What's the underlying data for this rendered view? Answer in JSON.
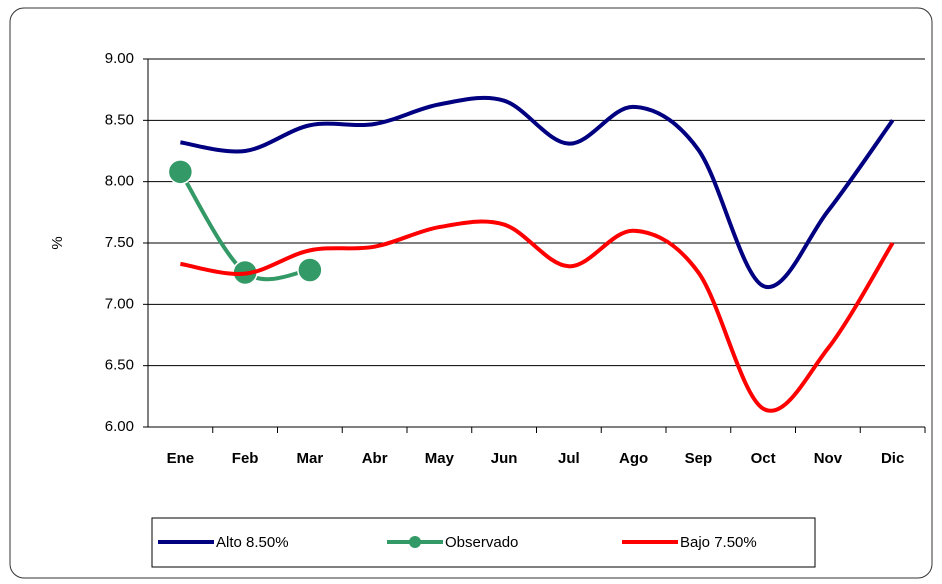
{
  "chart_data": {
    "type": "line",
    "y_label": "%",
    "categories": [
      "Ene",
      "Feb",
      "Mar",
      "Abr",
      "May",
      "Jun",
      "Jul",
      "Ago",
      "Sep",
      "Oct",
      "Nov",
      "Dic"
    ],
    "series": [
      {
        "name": "Alto 8.50%",
        "color": "#000080",
        "marker": false,
        "values": [
          8.32,
          8.25,
          8.46,
          8.47,
          8.63,
          8.66,
          8.31,
          8.61,
          8.26,
          7.15,
          7.76,
          8.5
        ]
      },
      {
        "name": "Observado",
        "color": "#339966",
        "marker": true,
        "values": [
          8.08,
          7.26,
          7.28,
          null,
          null,
          null,
          null,
          null,
          null,
          null,
          null,
          null
        ]
      },
      {
        "name": "Bajo 7.50%",
        "color": "#ff0000",
        "marker": false,
        "values": [
          7.33,
          7.25,
          7.44,
          7.47,
          7.63,
          7.65,
          7.31,
          7.6,
          7.26,
          6.15,
          6.64,
          7.5
        ]
      }
    ],
    "ylim": [
      6,
      9
    ],
    "yticks": [
      {
        "value": 6,
        "label": "6.00"
      },
      {
        "value": 6.5,
        "label": "6.50"
      },
      {
        "value": 7,
        "label": "7.00"
      },
      {
        "value": 7.5,
        "label": "7.50"
      },
      {
        "value": 8,
        "label": "8.00"
      },
      {
        "value": 8.5,
        "label": "8.50"
      },
      {
        "value": 9,
        "label": "9.00"
      }
    ],
    "grid": true
  }
}
